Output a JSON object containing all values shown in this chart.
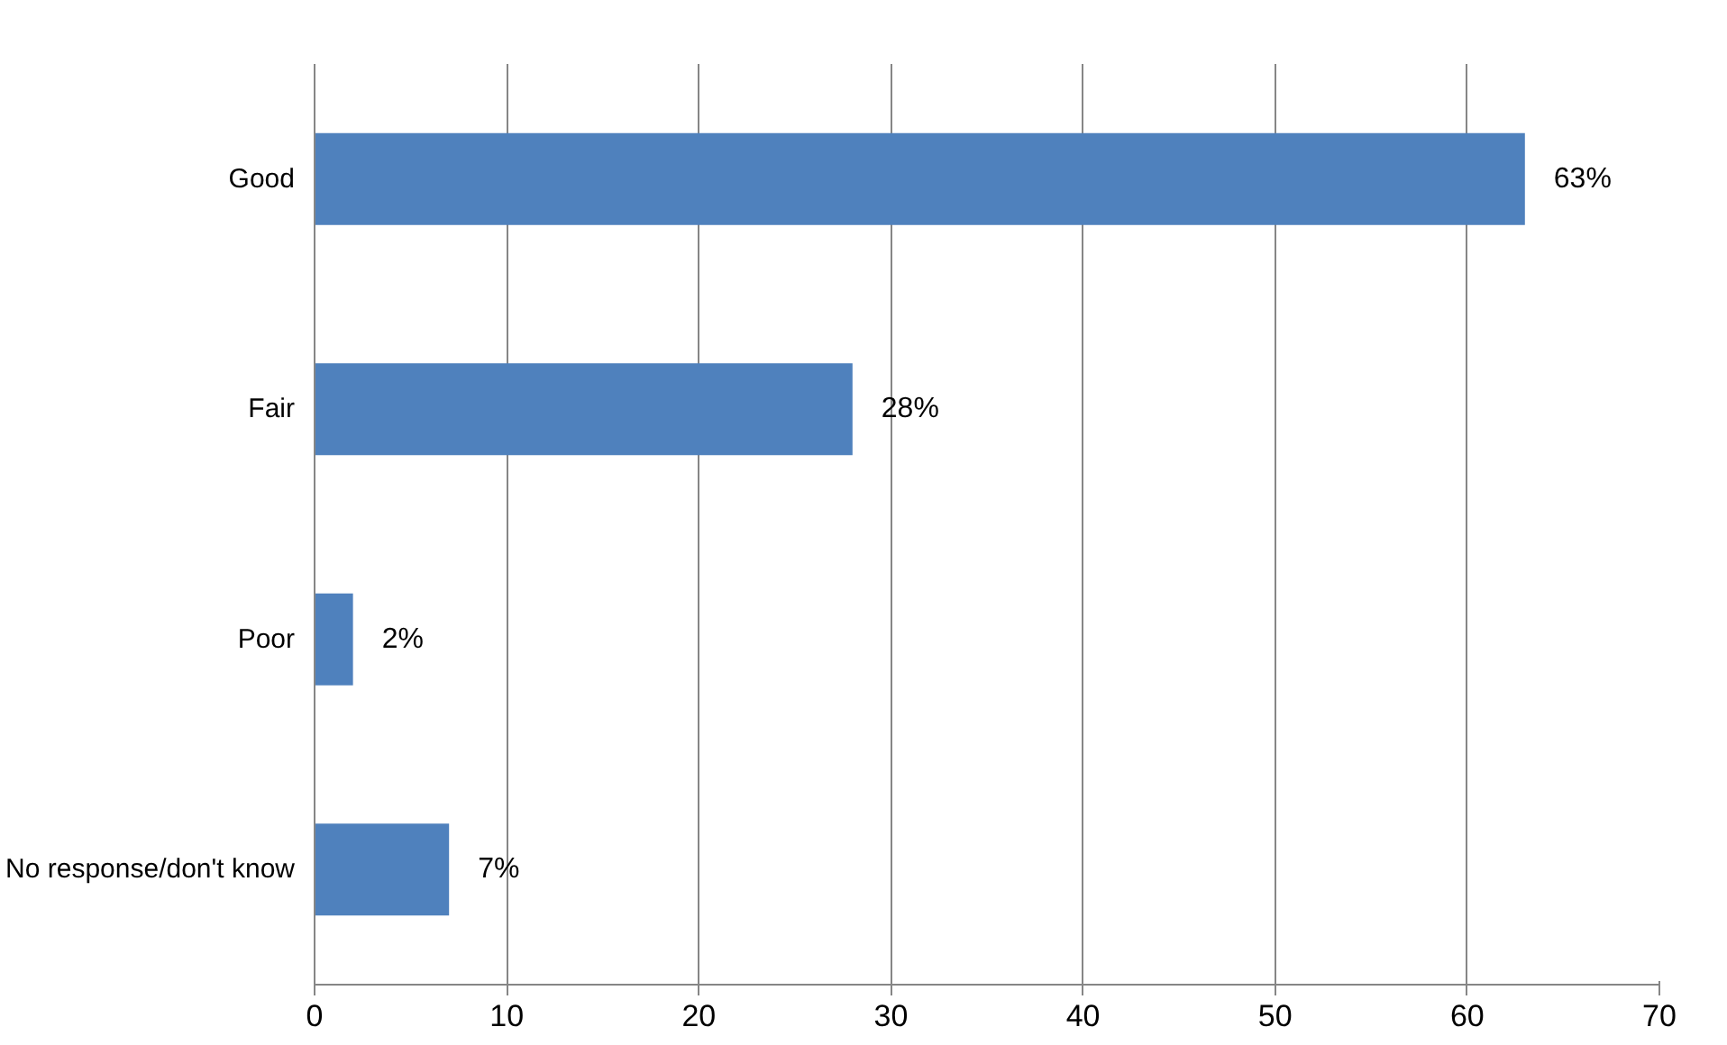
{
  "chart_data": {
    "type": "bar",
    "orientation": "horizontal",
    "categories": [
      "Good",
      "Fair",
      "Poor",
      "No response/don't know"
    ],
    "values": [
      63,
      28,
      2,
      7
    ],
    "value_labels": [
      "63%",
      "28%",
      "2%",
      "7%"
    ],
    "color": "#4f81bd",
    "xlim": [
      0,
      70
    ],
    "xticks": [
      0,
      10,
      20,
      30,
      40,
      50,
      60,
      70
    ],
    "grid": "x"
  }
}
